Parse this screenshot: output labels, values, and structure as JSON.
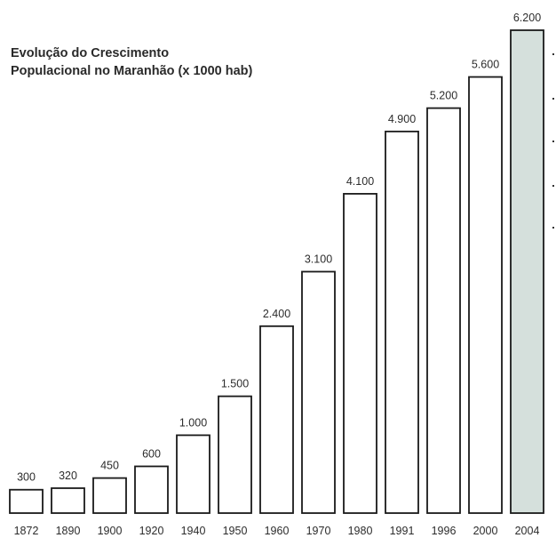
{
  "chart_data": {
    "type": "bar",
    "title": "Evolução do Crescimento Populacional no Maranhão (x 1000 hab)",
    "title_lines": [
      "Evolução do Crescimento",
      "Populacional no Maranhão (x 1000 hab)"
    ],
    "xlabel": "",
    "ylabel": "",
    "categories": [
      "1872",
      "1890",
      "1900",
      "1920",
      "1940",
      "1950",
      "1960",
      "1970",
      "1980",
      "1991",
      "1996",
      "2000",
      "2004"
    ],
    "values": [
      300,
      320,
      450,
      600,
      1000,
      1500,
      2400,
      3100,
      4100,
      4900,
      5200,
      5600,
      6200
    ],
    "value_labels": [
      "300",
      "320",
      "450",
      "600",
      "1.000",
      "1.500",
      "2.400",
      "3.100",
      "4.100",
      "4.900",
      "5.200",
      "5.600",
      "6.200"
    ],
    "highlight_index": 12,
    "ylim": [
      0,
      6200
    ],
    "grid": false,
    "legend": "none",
    "colors": {
      "bar_fill": "#ffffff",
      "bar_stroke": "#1a1a1a",
      "highlight_fill": "#d5e0dc",
      "text": "#2c2c2c"
    }
  }
}
